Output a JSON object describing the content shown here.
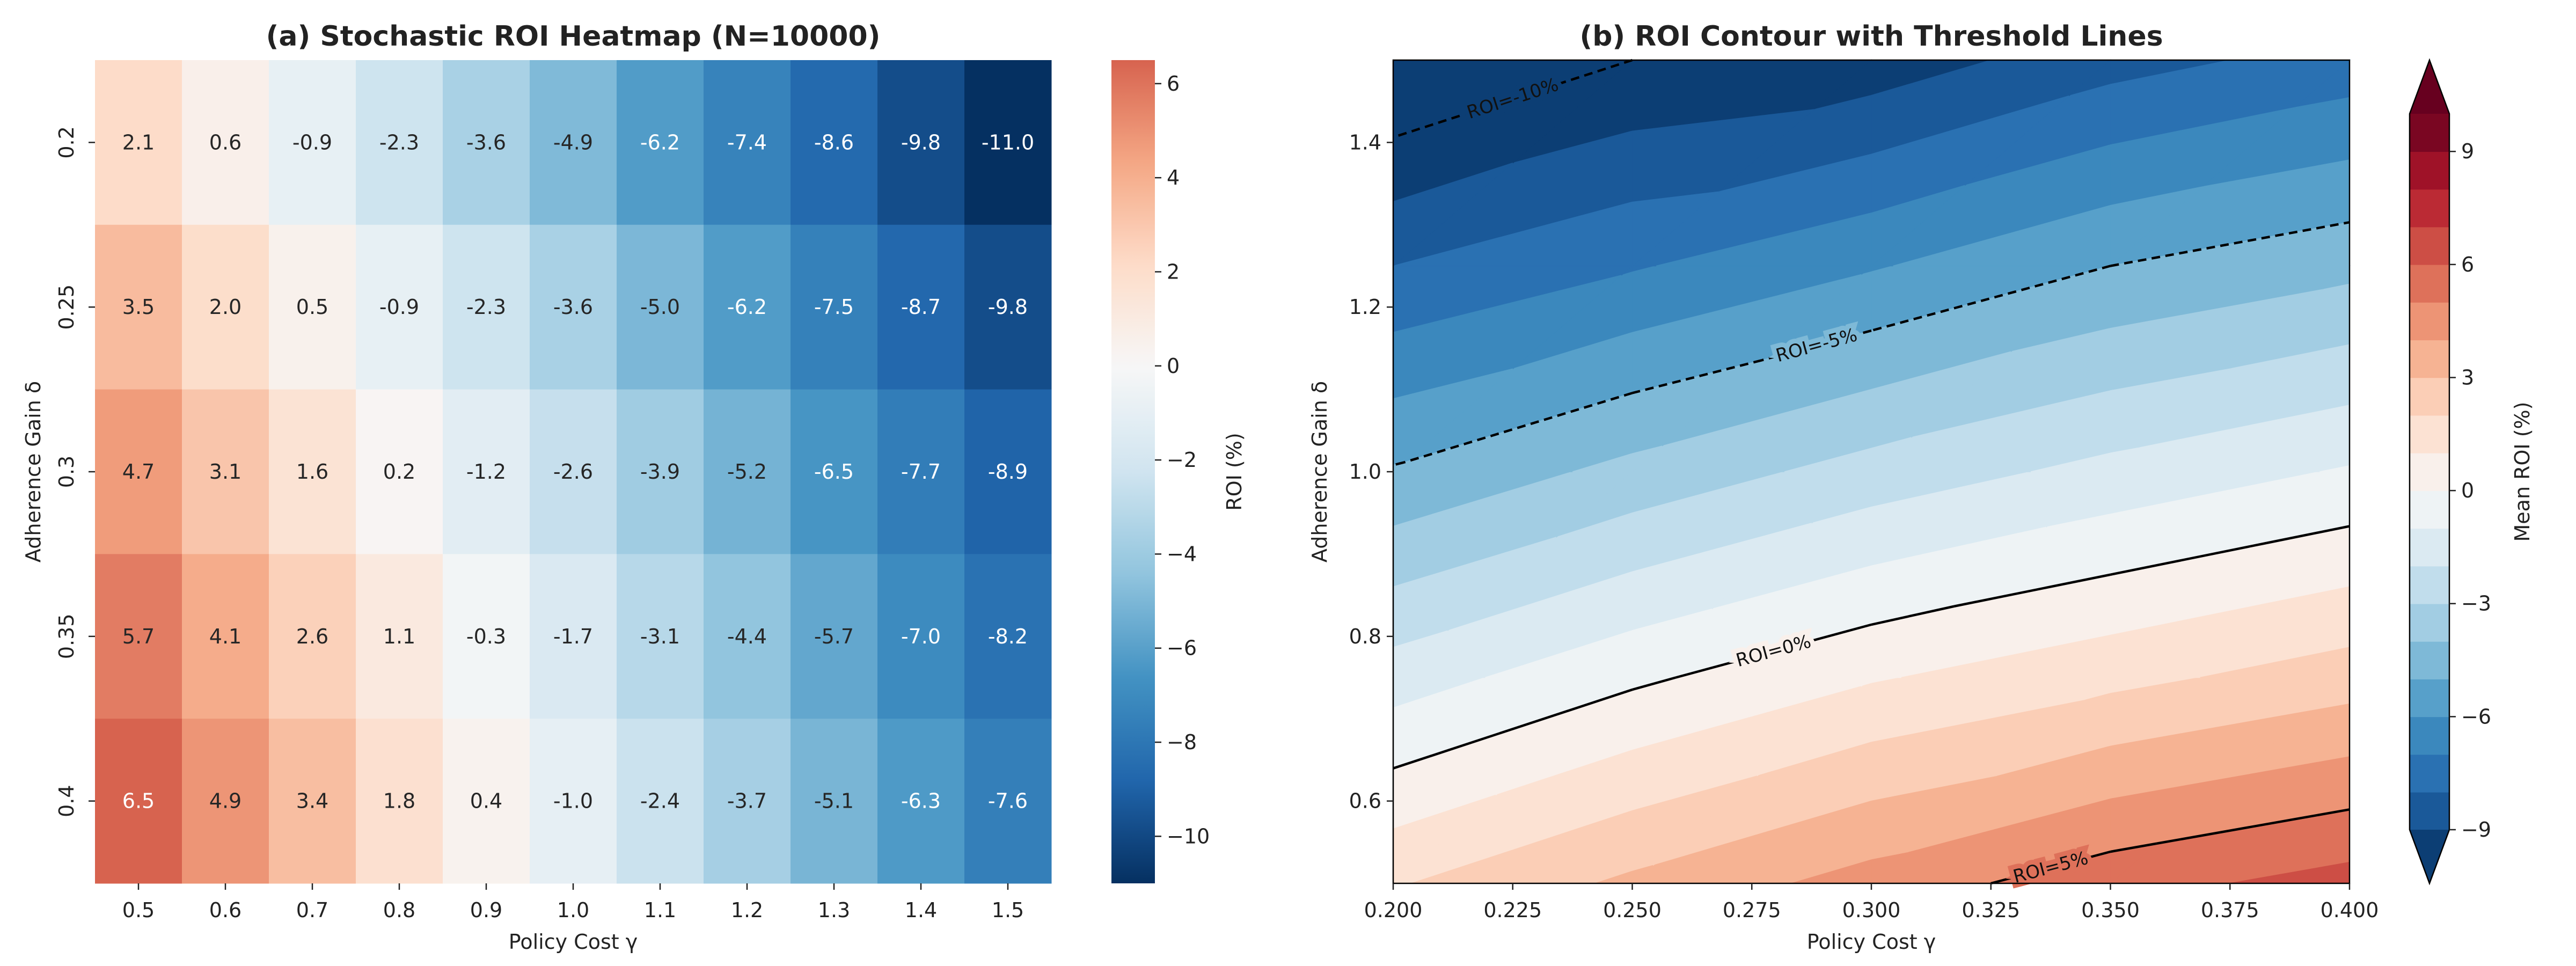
{
  "chart_data": [
    {
      "type": "heatmap",
      "title": "(a) Stochastic ROI Heatmap (N=10000)",
      "x_label": "Policy Cost γ",
      "y_label": "Adherence Gain δ",
      "categories": [
        "0.5",
        "0.6",
        "0.7",
        "0.8",
        "0.9",
        "1.0",
        "1.1",
        "1.2",
        "1.3",
        "1.4",
        "1.5"
      ],
      "y_categories": [
        "0.2",
        "0.25",
        "0.3",
        "0.35",
        "0.4"
      ],
      "values": [
        [
          2.1,
          0.6,
          -0.9,
          -2.3,
          -3.6,
          -4.9,
          -6.2,
          -7.4,
          -8.6,
          -9.8,
          -11.0
        ],
        [
          3.5,
          2.0,
          0.5,
          -0.9,
          -2.3,
          -3.6,
          -5.0,
          -6.2,
          -7.5,
          -8.7,
          -9.8
        ],
        [
          4.7,
          3.1,
          1.6,
          0.2,
          -1.2,
          -2.6,
          -3.9,
          -5.2,
          -6.5,
          -7.7,
          -8.9
        ],
        [
          5.7,
          4.1,
          2.6,
          1.1,
          -0.3,
          -1.7,
          -3.1,
          -4.4,
          -5.7,
          -7.0,
          -8.2
        ],
        [
          6.5,
          4.9,
          3.4,
          1.8,
          0.4,
          -1.0,
          -2.4,
          -3.7,
          -5.1,
          -6.3,
          -7.6
        ]
      ],
      "value_labels": [
        [
          "2.1",
          "0.6",
          "-0.9",
          "-2.3",
          "-3.6",
          "-4.9",
          "-6.2",
          "-7.4",
          "-8.6",
          "-9.8",
          "-11.0"
        ],
        [
          "3.5",
          "2.0",
          "0.5",
          "-0.9",
          "-2.3",
          "-3.6",
          "-5.0",
          "-6.2",
          "-7.5",
          "-8.7",
          "-9.8"
        ],
        [
          "4.7",
          "3.1",
          "1.6",
          "0.2",
          "-1.2",
          "-2.6",
          "-3.9",
          "-5.2",
          "-6.5",
          "-7.7",
          "-8.9"
        ],
        [
          "5.7",
          "4.1",
          "2.6",
          "1.1",
          "-0.3",
          "-1.7",
          "-3.1",
          "-4.4",
          "-5.7",
          "-7.0",
          "-8.2"
        ],
        [
          "6.5",
          "4.9",
          "3.4",
          "1.8",
          "0.4",
          "-1.0",
          "-2.4",
          "-3.7",
          "-5.1",
          "-6.3",
          "-7.6"
        ]
      ],
      "colorscale": [
        "#053061",
        "#2166ac",
        "#4393c3",
        "#92c5de",
        "#d1e5f0",
        "#f7f7f7",
        "#fddbc7",
        "#f4a582",
        "#d6604d",
        "#b2182b",
        "#67001f"
      ],
      "color_range": [
        -11,
        11
      ],
      "colorbar": {
        "label": "ROI (%)",
        "ylim": [
          -11,
          6.5
        ],
        "yticks": [
          {
            "value": -10,
            "label": "−10"
          },
          {
            "value": -8,
            "label": "−8"
          },
          {
            "value": -6,
            "label": "−6"
          },
          {
            "value": -4,
            "label": "−4"
          },
          {
            "value": -2,
            "label": "−2"
          },
          0,
          2,
          4,
          6
        ]
      }
    },
    {
      "type": "contour",
      "title": "(b) ROI Contour with Threshold Lines",
      "x_label": "Policy Cost γ",
      "y_label": "Adherence Gain δ",
      "x": [
        0.2,
        0.25,
        0.3,
        0.35,
        0.4
      ],
      "y": [
        0.5,
        0.75,
        1.0,
        1.25,
        1.5
      ],
      "z": [
        [
          1.9,
          3.2,
          4.4,
          5.6,
          6.4
        ],
        [
          -1.5,
          -0.2,
          0.9,
          1.7,
          2.5
        ],
        [
          -4.9,
          -3.7,
          -2.6,
          -1.7,
          -0.9
        ],
        [
          -8.0,
          -7.1,
          -6.1,
          -5.0,
          -4.3
        ],
        [
          -11.2,
          -10.0,
          -9.6,
          -8.4,
          -7.6
        ]
      ],
      "xlim": [
        0.2,
        0.4
      ],
      "ylim": [
        0.5,
        1.5
      ],
      "xticks": [
        {
          "value": 0.2,
          "label": "0.200"
        },
        {
          "value": 0.225,
          "label": "0.225"
        },
        {
          "value": 0.25,
          "label": "0.250"
        },
        {
          "value": 0.275,
          "label": "0.275"
        },
        {
          "value": 0.3,
          "label": "0.300"
        },
        {
          "value": 0.325,
          "label": "0.325"
        },
        {
          "value": 0.35,
          "label": "0.350"
        },
        {
          "value": 0.375,
          "label": "0.375"
        },
        {
          "value": 0.4,
          "label": "0.400"
        }
      ],
      "yticks": [
        0.6,
        0.8,
        {
          "value": 1.0,
          "label": "1.0"
        },
        1.2,
        1.4
      ],
      "levels": [
        -9,
        -8,
        -7,
        -6,
        -5,
        -4,
        -3,
        -2,
        -1,
        0,
        1,
        2,
        3,
        4,
        5,
        6,
        7,
        8,
        9,
        10
      ],
      "extend": "both",
      "colorscale": [
        "#053061",
        "#2166ac",
        "#4393c3",
        "#92c5de",
        "#d1e5f0",
        "#f7f7f7",
        "#fddbc7",
        "#f4a582",
        "#d6604d",
        "#b2182b",
        "#67001f"
      ],
      "color_range": [
        -10,
        10
      ],
      "threshold_lines": [
        {
          "level": -10,
          "label": "ROI=-10%"
        },
        {
          "level": -5,
          "label": "ROI=-5%"
        },
        {
          "level": 0,
          "label": "ROI=0%"
        },
        {
          "level": 5,
          "label": "ROI=5%"
        }
      ],
      "colorbar": {
        "label": "Mean ROI (%)",
        "yticks": [
          {
            "value": -9,
            "label": "−9"
          },
          {
            "value": -6,
            "label": "−6"
          },
          {
            "value": -3,
            "label": "−3"
          },
          0,
          3,
          6,
          9
        ]
      }
    }
  ]
}
